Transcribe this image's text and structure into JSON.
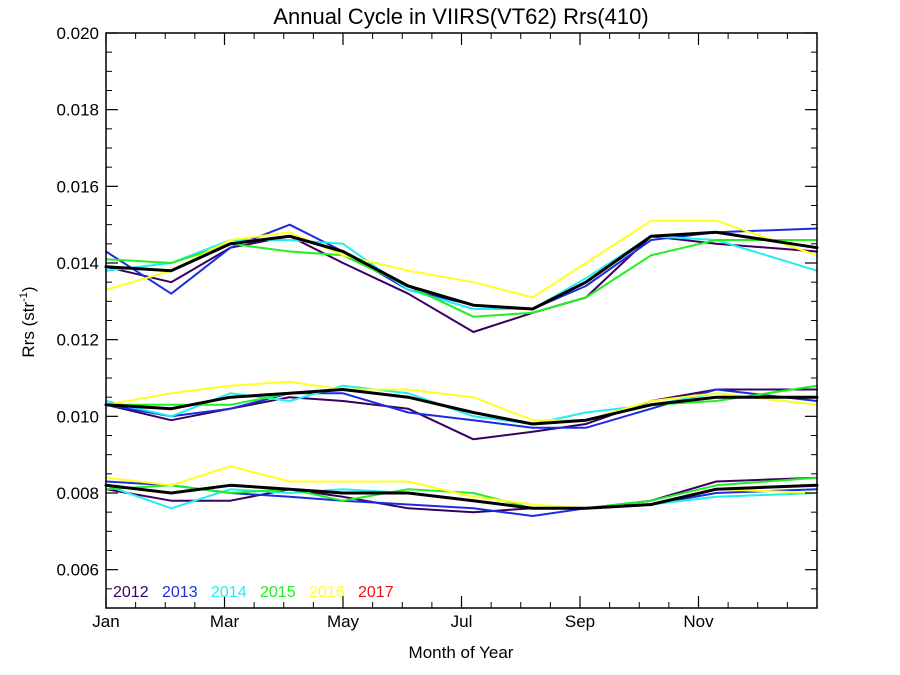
{
  "chart_data": {
    "type": "line",
    "title": "Annual Cycle in VIIRS(VT62) Rrs(410)",
    "xlabel": "Month of Year",
    "ylabel_main": "Rrs (str",
    "ylabel_sup": "-1",
    "ylabel_close": ")",
    "xlim": [
      1,
      13
    ],
    "ylim": [
      0.005,
      0.02
    ],
    "x": [
      1.0,
      2.1,
      3.1,
      4.1,
      5.0,
      6.1,
      7.2,
      8.2,
      9.1,
      10.2,
      11.3,
      13.0
    ],
    "x_ticks": [
      {
        "value": 1,
        "label": "Jan"
      },
      {
        "value": 3,
        "label": "Mar"
      },
      {
        "value": 5,
        "label": "May"
      },
      {
        "value": 7,
        "label": "Jul"
      },
      {
        "value": 9,
        "label": "Sep"
      },
      {
        "value": 11,
        "label": "Nov"
      }
    ],
    "y_ticks": [
      {
        "value": 0.006,
        "label": "0.006"
      },
      {
        "value": 0.008,
        "label": "0.008"
      },
      {
        "value": 0.01,
        "label": "0.010"
      },
      {
        "value": 0.012,
        "label": "0.012"
      },
      {
        "value": 0.014,
        "label": "0.014"
      },
      {
        "value": 0.016,
        "label": "0.016"
      },
      {
        "value": 0.018,
        "label": "0.018"
      },
      {
        "value": 0.02,
        "label": "0.020"
      }
    ],
    "legend": {
      "placement": "bottom-left",
      "entries": [
        {
          "label": "2012",
          "color": "#3a0060"
        },
        {
          "label": "2013",
          "color": "#1a2ee0"
        },
        {
          "label": "2014",
          "color": "#22eeee"
        },
        {
          "label": "2015",
          "color": "#22ee22"
        },
        {
          "label": "2016",
          "color": "#ffff22"
        },
        {
          "label": "2017",
          "color": "#ee1111"
        }
      ]
    },
    "groups": [
      {
        "series": [
          {
            "year": "2012",
            "color": "#3a0060",
            "values": [
              0.0139,
              0.0135,
              0.0144,
              0.0147,
              0.014,
              0.0132,
              0.0122,
              0.0127,
              0.0131,
              0.0147,
              0.0145,
              0.0143
            ]
          },
          {
            "year": "2013",
            "color": "#1a2ee0",
            "values": [
              0.0143,
              0.0132,
              0.0144,
              0.015,
              0.0143,
              0.0133,
              0.0129,
              0.0128,
              0.0134,
              0.0146,
              0.0148,
              0.0149
            ]
          },
          {
            "year": "2014",
            "color": "#22eeee",
            "values": [
              0.0138,
              0.014,
              0.0146,
              0.0146,
              0.0145,
              0.0133,
              0.0128,
              0.0128,
              0.0136,
              0.0147,
              0.0146,
              0.0138
            ]
          },
          {
            "year": "2015",
            "color": "#22ee22",
            "values": [
              0.0141,
              0.014,
              0.0145,
              0.0143,
              0.0142,
              0.0134,
              0.0126,
              0.0127,
              0.0131,
              0.0142,
              0.0146,
              0.0146
            ]
          },
          {
            "year": "2016",
            "color": "#ffff22",
            "values": [
              0.0133,
              0.0138,
              0.0146,
              0.0148,
              0.0142,
              0.0138,
              0.0135,
              0.0131,
              0.014,
              0.0151,
              0.0151,
              0.0142
            ]
          },
          {
            "year": "mean",
            "color": "#000000",
            "values": [
              0.0139,
              0.0138,
              0.0145,
              0.0147,
              0.0143,
              0.0134,
              0.0129,
              0.0128,
              0.0135,
              0.0147,
              0.0148,
              0.0144
            ]
          }
        ]
      },
      {
        "series": [
          {
            "year": "2012",
            "color": "#3a0060",
            "values": [
              0.0103,
              0.0099,
              0.0102,
              0.0105,
              0.0104,
              0.0102,
              0.0094,
              0.0096,
              0.0098,
              0.0104,
              0.0107,
              0.0107
            ]
          },
          {
            "year": "2013",
            "color": "#1a2ee0",
            "values": [
              0.0103,
              0.01,
              0.0102,
              0.0106,
              0.0106,
              0.0101,
              0.0099,
              0.0097,
              0.0097,
              0.0102,
              0.0107,
              0.0104
            ]
          },
          {
            "year": "2014",
            "color": "#22eeee",
            "values": [
              0.0104,
              0.01,
              0.0106,
              0.0104,
              0.0108,
              0.0106,
              0.01,
              0.0098,
              0.0101,
              0.0103,
              0.0106,
              0.0103
            ]
          },
          {
            "year": "2015",
            "color": "#22ee22",
            "values": [
              0.0103,
              0.0103,
              0.0103,
              0.0106,
              0.0107,
              0.0105,
              0.0101,
              0.0098,
              0.0099,
              0.0103,
              0.0104,
              0.0108
            ]
          },
          {
            "year": "2016",
            "color": "#ffff22",
            "values": [
              0.0103,
              0.0106,
              0.0108,
              0.0109,
              0.0107,
              0.0107,
              0.0105,
              0.0099,
              0.0099,
              0.0104,
              0.0106,
              0.0103
            ]
          },
          {
            "year": "mean",
            "color": "#000000",
            "values": [
              0.0103,
              0.0102,
              0.0105,
              0.0106,
              0.0107,
              0.0105,
              0.0101,
              0.0098,
              0.0099,
              0.0103,
              0.0105,
              0.0105
            ]
          }
        ]
      },
      {
        "series": [
          {
            "year": "2012",
            "color": "#3a0060",
            "values": [
              0.0081,
              0.0078,
              0.0078,
              0.0081,
              0.0079,
              0.0076,
              0.0075,
              0.0076,
              0.0076,
              0.0078,
              0.0083,
              0.0084
            ]
          },
          {
            "year": "2013",
            "color": "#1a2ee0",
            "values": [
              0.0083,
              0.0082,
              0.008,
              0.0079,
              0.0078,
              0.0077,
              0.0076,
              0.0074,
              0.0076,
              0.0077,
              0.008,
              0.0081
            ]
          },
          {
            "year": "2014",
            "color": "#22eeee",
            "values": [
              0.0082,
              0.0076,
              0.0081,
              0.008,
              0.0081,
              0.008,
              0.0078,
              0.0076,
              0.0076,
              0.0077,
              0.0079,
              0.008
            ]
          },
          {
            "year": "2015",
            "color": "#22ee22",
            "values": [
              0.0081,
              0.0082,
              0.008,
              0.0081,
              0.0078,
              0.0081,
              0.008,
              0.0076,
              0.0076,
              0.0078,
              0.0082,
              0.0084
            ]
          },
          {
            "year": "2016",
            "color": "#ffff22",
            "values": [
              0.0084,
              0.0082,
              0.0087,
              0.0083,
              0.0083,
              0.0083,
              0.0079,
              0.0077,
              0.0076,
              0.0077,
              0.0081,
              0.008
            ]
          },
          {
            "year": "mean",
            "color": "#000000",
            "values": [
              0.0082,
              0.008,
              0.0082,
              0.0081,
              0.008,
              0.008,
              0.0078,
              0.0076,
              0.0076,
              0.0077,
              0.0081,
              0.0082
            ]
          }
        ]
      }
    ]
  }
}
